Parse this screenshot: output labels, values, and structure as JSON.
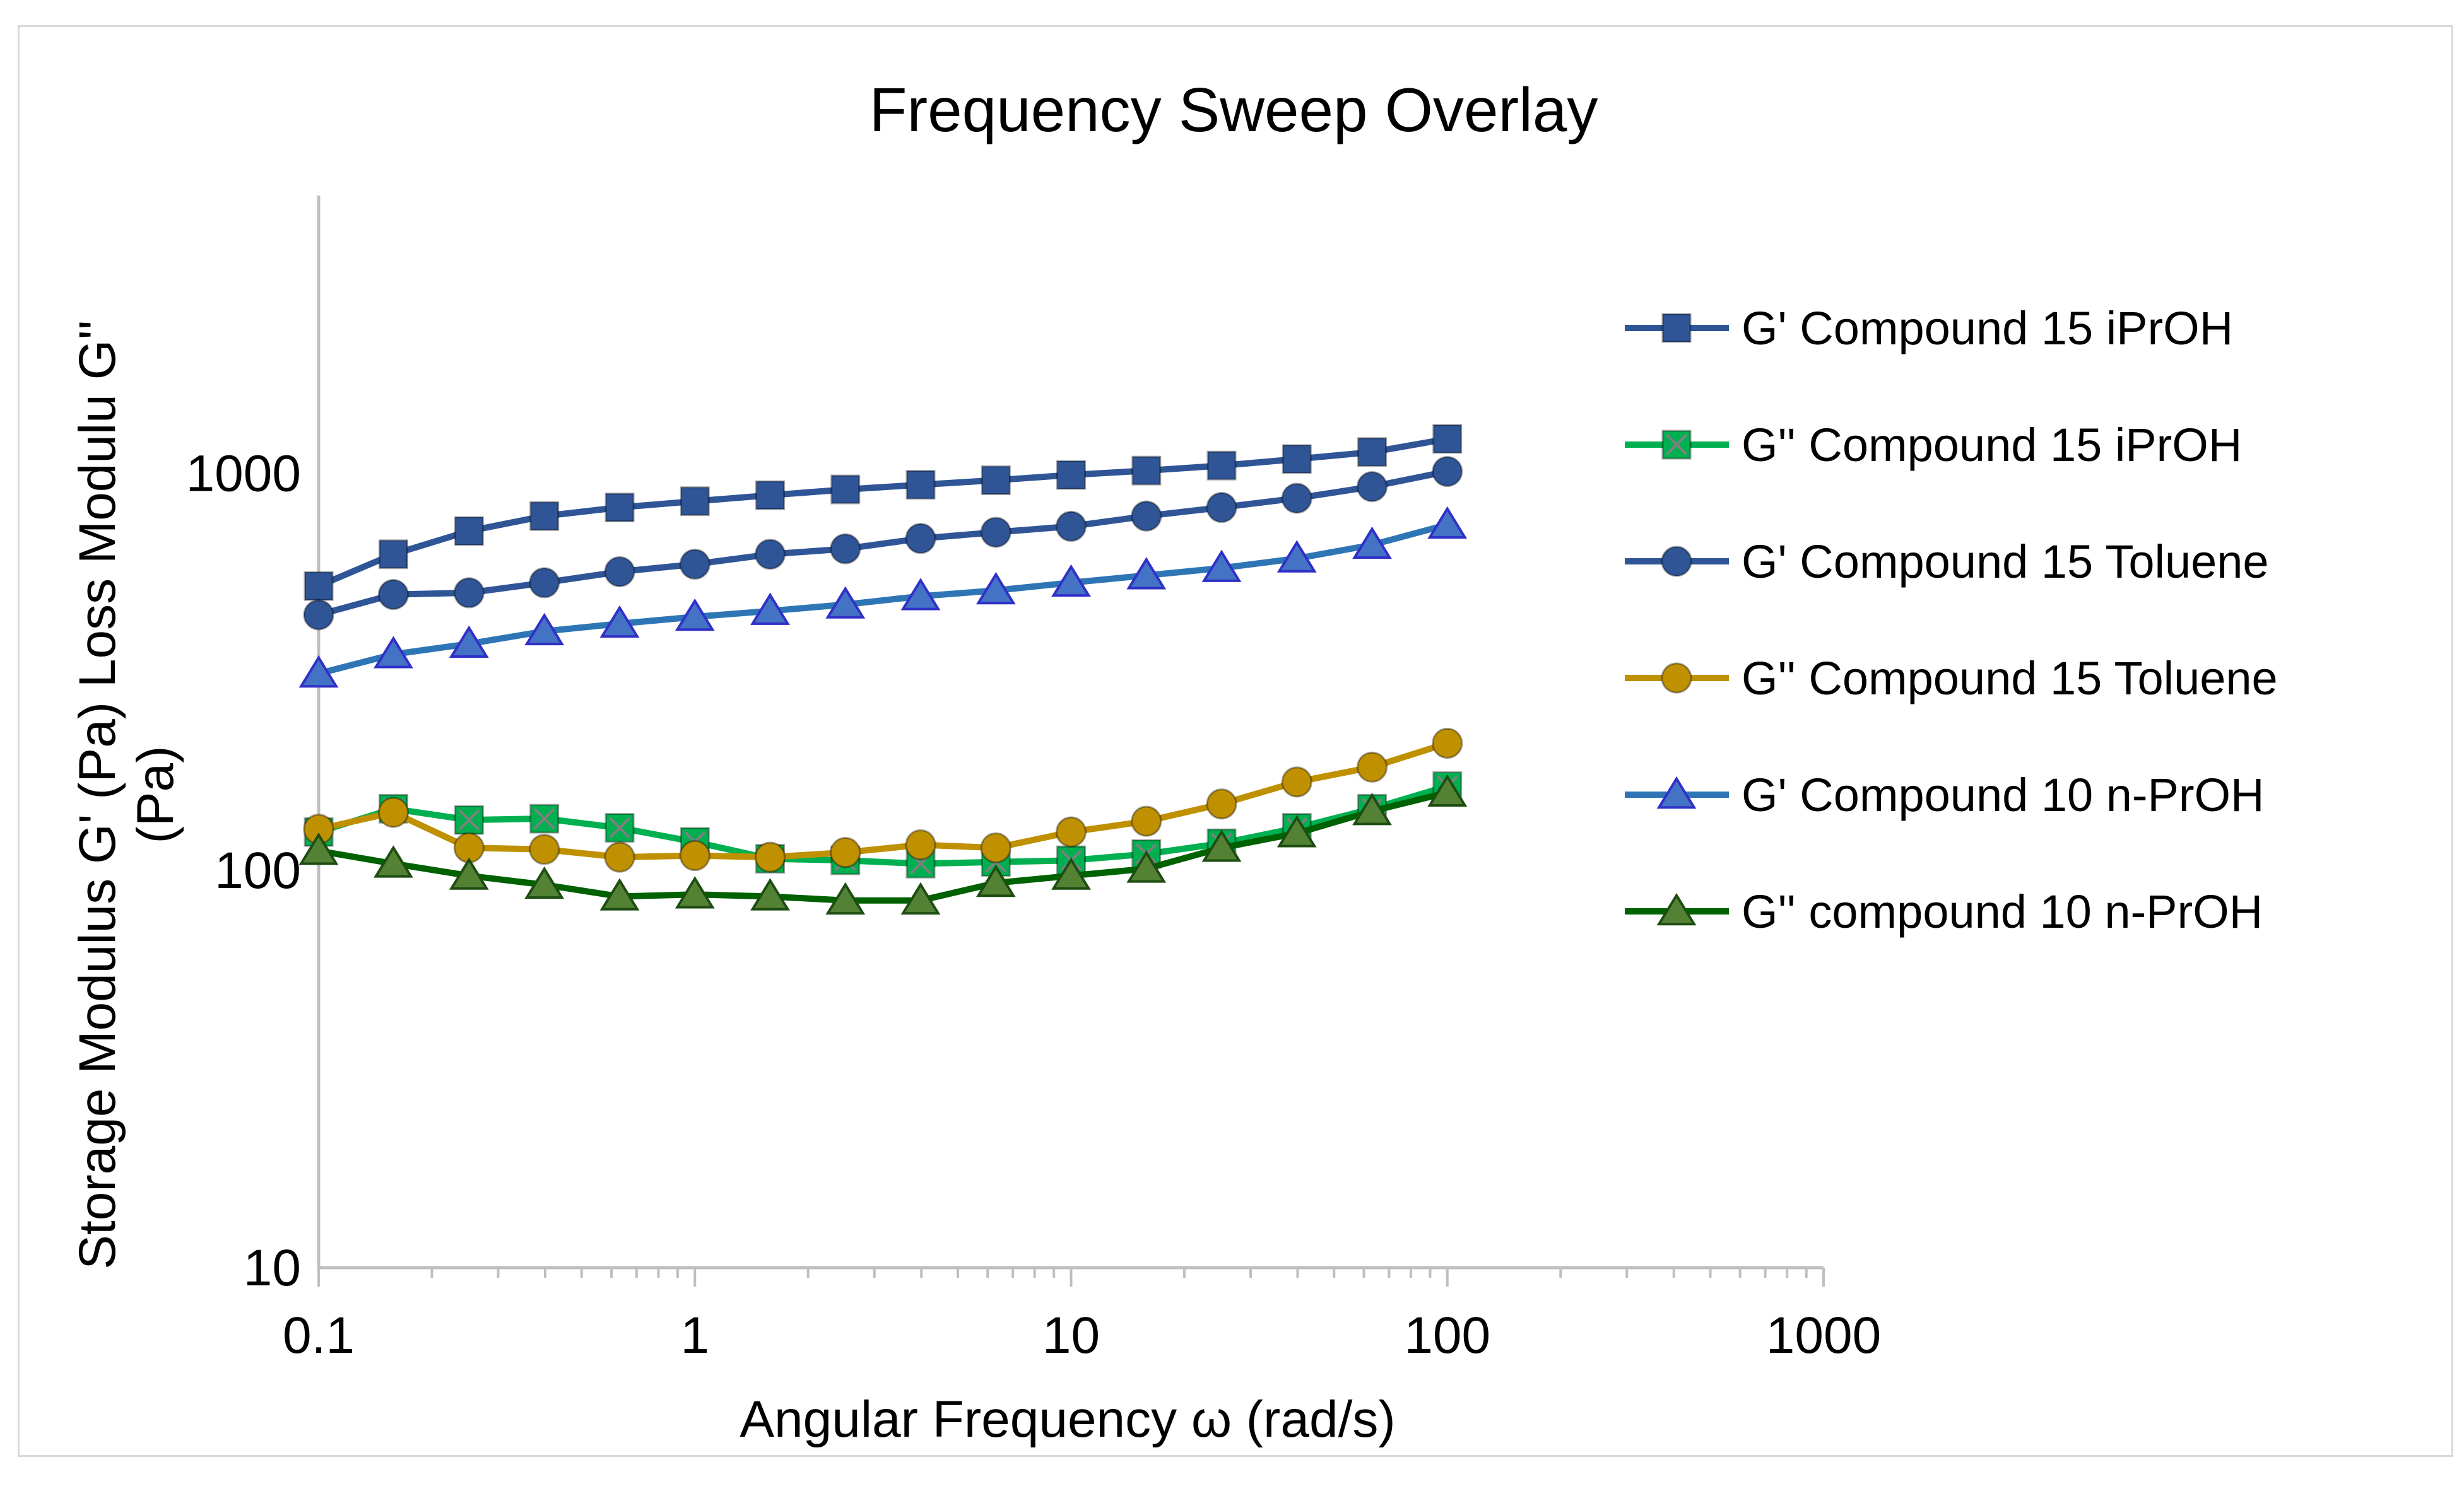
{
  "chart_data": {
    "type": "line",
    "title": "Frequency Sweep Overlay",
    "xlabel": "Angular Frequency ω (rad/s)",
    "ylabel_lines": [
      "Storage Modulus G' (Pa) Loss Modulu G''",
      "(Pa)"
    ],
    "xscale": "log",
    "yscale": "log",
    "xlim": [
      0.1,
      1000
    ],
    "ylim": [
      10,
      5000
    ],
    "x_ticks": [
      0.1,
      1,
      10,
      100,
      1000
    ],
    "x_tick_labels": [
      "0.1",
      "1",
      "10",
      "100",
      "1000"
    ],
    "y_ticks": [
      10,
      100,
      1000
    ],
    "y_tick_labels": [
      "10",
      "100",
      "1000"
    ],
    "grid": false,
    "legend_position": "right",
    "x": [
      0.1,
      0.158,
      0.251,
      0.398,
      0.631,
      1,
      1.585,
      2.512,
      3.981,
      6.31,
      10,
      15.85,
      25.12,
      39.81,
      63.1,
      100
    ],
    "series": [
      {
        "name": "G' Compound 15 iPrOH",
        "color": "#2f5597",
        "marker": "square",
        "values": [
          520,
          625,
          715,
          780,
          820,
          850,
          880,
          910,
          935,
          960,
          990,
          1015,
          1045,
          1085,
          1130,
          1220
        ]
      },
      {
        "name": "G''  Compound 15 iPrOH",
        "color": "#00b050",
        "marker": "square-x",
        "values": [
          125,
          143,
          134,
          135,
          128,
          118,
          107,
          106,
          104,
          105,
          106,
          110,
          117,
          128,
          143,
          163
        ]
      },
      {
        "name": "G'  Compound 15 Toluene",
        "color": "#2f5597",
        "marker": "circle",
        "values": [
          440,
          495,
          500,
          530,
          565,
          590,
          625,
          645,
          685,
          710,
          735,
          780,
          820,
          865,
          925,
          1010
        ]
      },
      {
        "name": "G'' Compound 15 Toluene",
        "color": "#bf9000",
        "marker": "circle",
        "values": [
          127,
          140,
          114,
          113,
          108,
          109,
          108,
          111,
          116,
          114,
          125,
          133,
          147,
          167,
          182,
          209
        ]
      },
      {
        "name": "G' Compound 10 n-PrOH",
        "color": "#2e75b6",
        "marker": "triangle",
        "values": [
          313,
          350,
          372,
          400,
          418,
          435,
          450,
          467,
          490,
          507,
          530,
          553,
          577,
          610,
          660,
          742
        ]
      },
      {
        "name": "G'' compound 10 n-PrOH",
        "color": "#006100",
        "marker": "triangle",
        "values": [
          112,
          104,
          97,
          92,
          86,
          87,
          86,
          84,
          84,
          93,
          97,
          101,
          114,
          124,
          141,
          157
        ]
      }
    ]
  }
}
